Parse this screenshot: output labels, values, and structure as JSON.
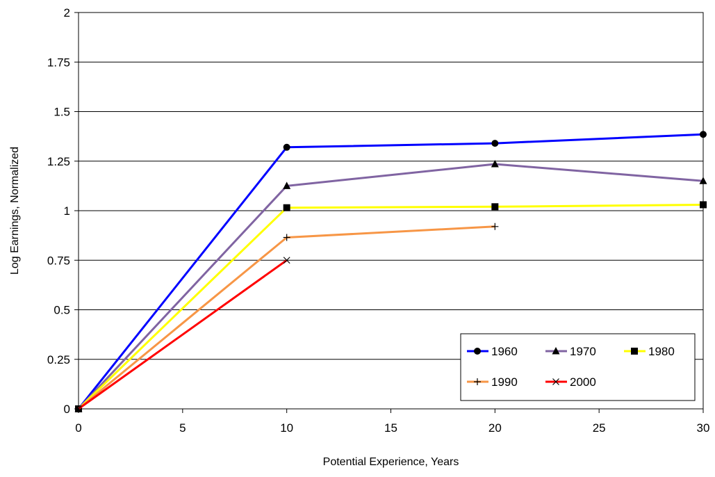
{
  "chart_data": {
    "type": "line",
    "title": "",
    "xlabel": "Potential Experience,  Years",
    "ylabel": "Log Earnings, Normalized",
    "xlim": [
      0,
      30
    ],
    "ylim": [
      0,
      2
    ],
    "xticks": [
      0,
      5,
      10,
      15,
      20,
      25,
      30
    ],
    "yticks": [
      0,
      0.25,
      0.5,
      0.75,
      1,
      1.25,
      1.5,
      1.75,
      2
    ],
    "xtick_labels": [
      "0",
      "5",
      "10",
      "15",
      "20",
      "25",
      "30"
    ],
    "ytick_labels": [
      "0",
      "0.25",
      "0.5",
      "0.75",
      "1",
      "1.25",
      "1.5",
      "1.75",
      "2"
    ],
    "grid": "horizontal",
    "legend_position": "bottom-right",
    "series": [
      {
        "name": "1960",
        "color": "#0000ff",
        "marker": "circle",
        "x": [
          0,
          10,
          20,
          30
        ],
        "y": [
          0,
          1.32,
          1.34,
          1.385
        ]
      },
      {
        "name": "1970",
        "color": "#8064a2",
        "marker": "triangle",
        "x": [
          0,
          10,
          20,
          30
        ],
        "y": [
          0,
          1.125,
          1.235,
          1.15
        ]
      },
      {
        "name": "1980",
        "color": "#ffff00",
        "marker": "square",
        "x": [
          0,
          10,
          20,
          30
        ],
        "y": [
          0,
          1.015,
          1.02,
          1.03
        ]
      },
      {
        "name": "1990",
        "color": "#f79646",
        "marker": "plus",
        "x": [
          0,
          10,
          20
        ],
        "y": [
          0,
          0.865,
          0.92
        ]
      },
      {
        "name": "2000",
        "color": "#ff0000",
        "marker": "x",
        "x": [
          0,
          10
        ],
        "y": [
          0,
          0.75
        ]
      }
    ]
  }
}
